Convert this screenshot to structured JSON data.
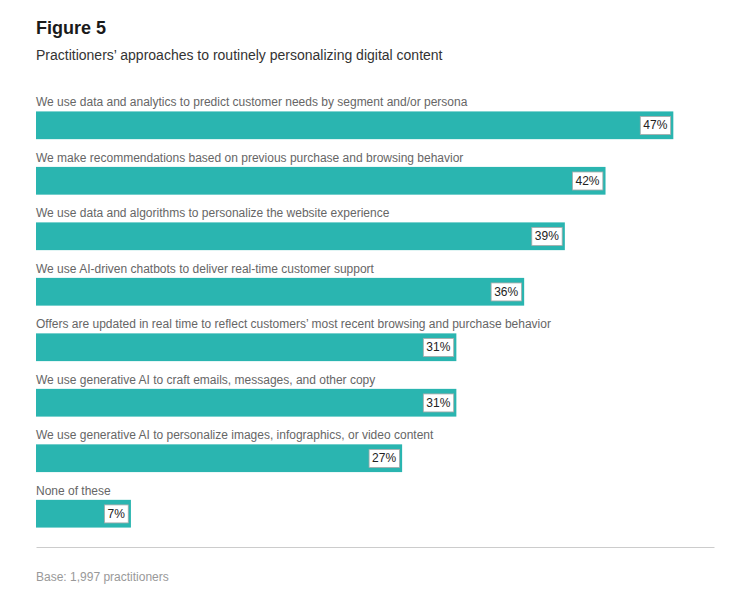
{
  "chart_data": {
    "type": "bar",
    "orientation": "horizontal",
    "title": "Figure 5",
    "subtitle": "Practitioners’ approaches to routinely personalizing digital content",
    "annotations": [
      "Base: 1,997 practitioners"
    ],
    "categories": [
      "We use data and analytics to predict customer needs by segment and/or persona",
      "We make recommendations based on previous purchase and browsing behavior",
      "We use data and algorithms to personalize the website experience",
      "We use AI-driven chatbots to deliver real-time customer support",
      "Offers are updated in real time to reflect customers’ most recent browsing and purchase behavior",
      "We use generative AI to craft emails, messages, and other copy",
      "We use generative AI to personalize images, infographics, or video content",
      "None of these"
    ],
    "values": [
      47,
      42,
      39,
      36,
      31,
      31,
      27,
      7
    ],
    "value_labels": [
      "47%",
      "42%",
      "39%",
      "36%",
      "31%",
      "31%",
      "27%",
      "7%"
    ],
    "data_labels": true,
    "color": "#2ab5b0",
    "xlim": [
      0,
      50
    ],
    "tick_labels": false,
    "grid": false
  }
}
